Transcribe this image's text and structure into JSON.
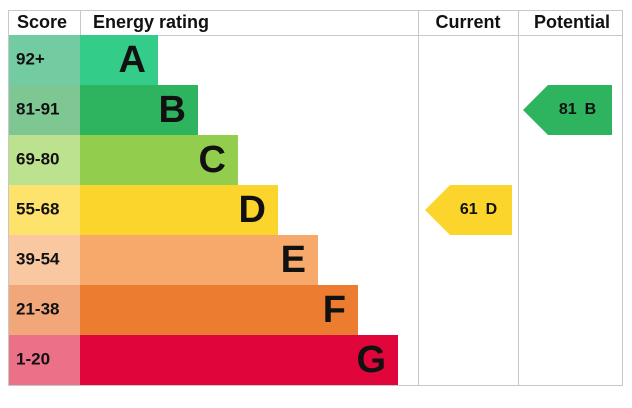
{
  "chart_data": {
    "type": "epc",
    "headers": {
      "score": "Score",
      "rating": "Energy rating",
      "current": "Current",
      "potential": "Potential"
    },
    "bands": [
      {
        "score": "92+",
        "letter": "A",
        "color": "#33cc88",
        "score_color": "#72cba1"
      },
      {
        "score": "81-91",
        "letter": "B",
        "color": "#2eb35f",
        "score_color": "#7ec792"
      },
      {
        "score": "69-80",
        "letter": "C",
        "color": "#93cd4e",
        "score_color": "#bde28f"
      },
      {
        "score": "55-68",
        "letter": "D",
        "color": "#fcd52c",
        "score_color": "#fde36b"
      },
      {
        "score": "39-54",
        "letter": "E",
        "color": "#f6a96b",
        "score_color": "#f9c7a0"
      },
      {
        "score": "21-38",
        "letter": "F",
        "color": "#ec7d30",
        "score_color": "#f2a77a"
      },
      {
        "score": "1-20",
        "letter": "G",
        "color": "#e0063b",
        "score_color": "#ec7188"
      }
    ],
    "current": {
      "value": 61,
      "letter": "D"
    },
    "potential": {
      "value": 81,
      "letter": "B"
    }
  }
}
